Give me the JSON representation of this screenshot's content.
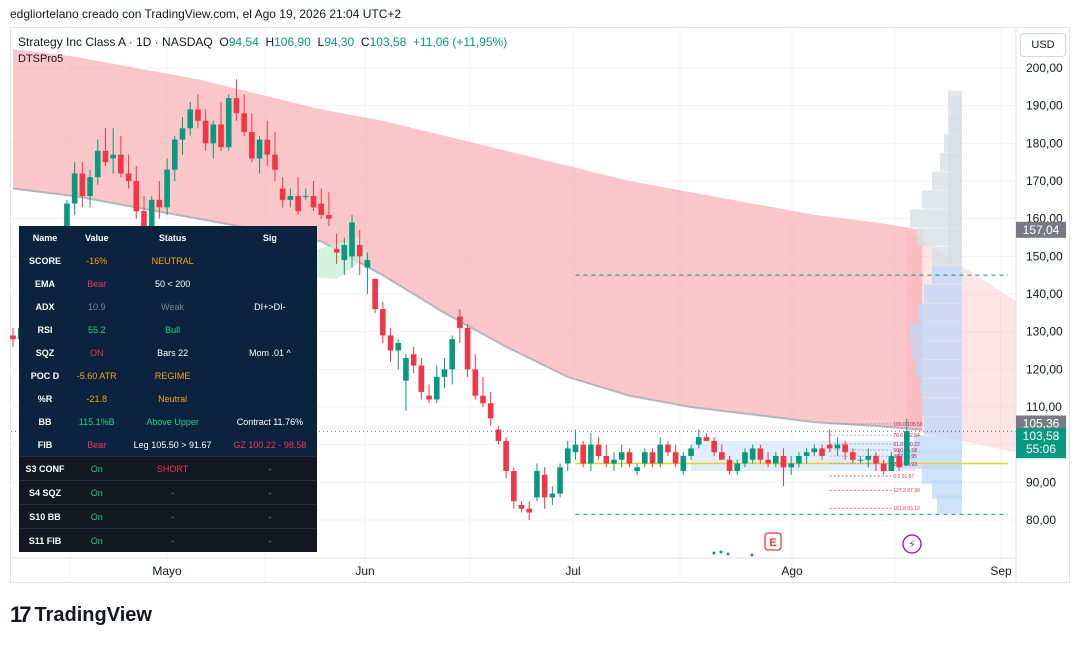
{
  "header": {
    "caption": "edgliortelano creado con TradingView.com, el Ago 19, 2026 21:04 UTC+2"
  },
  "legend": {
    "symbol": "Strategy Inc Class A · 1D · NASDAQ",
    "o_label": "O",
    "o_value": "94,54",
    "h_label": "H",
    "h_value": "106,90",
    "l_label": "L",
    "l_value": "94,30",
    "c_label": "C",
    "c_value": "103,58",
    "change": "+11,06 (+11,95%)",
    "indicator": "DTSPro5"
  },
  "currency_button": "USD",
  "price_badges": {
    "level_157": "157,04",
    "level_105": "105,36",
    "last_price": "103,58",
    "countdown": "55:06"
  },
  "footer": {
    "brand": "TradingView"
  },
  "colors": {
    "up": "#089981",
    "down": "#f23645",
    "cloud_red": "#f7a7ab",
    "cloud_green": "#c8efd8",
    "profile_blue": "#bcd7f5",
    "profile_grey": "#d6dde3",
    "poc_line": "#e8d224"
  },
  "panel": {
    "headers": [
      "Name",
      "Value",
      "Status",
      "Sig"
    ],
    "rows": [
      {
        "name": "SCORE",
        "value": "-16%",
        "value_color": "orange",
        "status": "NEUTRAL",
        "status_color": "orange",
        "sig": "",
        "sig_color": "white"
      },
      {
        "name": "EMA",
        "value": "Bear",
        "value_color": "red",
        "status": "50 < 200",
        "status_color": "white",
        "sig": "",
        "sig_color": "white"
      },
      {
        "name": "ADX",
        "value": "10.9",
        "value_color": "grey",
        "status": "Weak",
        "status_color": "grey",
        "sig": "DI+>DI-",
        "sig_color": "white"
      },
      {
        "name": "RSI",
        "value": "55.2",
        "value_color": "green",
        "status": "Bull",
        "status_color": "green",
        "sig": "",
        "sig_color": "white"
      },
      {
        "name": "SQZ",
        "value": "ON",
        "value_color": "red",
        "status": "Bars 22",
        "status_color": "white",
        "sig": "Mom .01 ^",
        "sig_color": "white"
      },
      {
        "name": "POC D",
        "value": "-5.60 ATR",
        "value_color": "orange",
        "status": "REGIME",
        "status_color": "orange",
        "sig": "",
        "sig_color": "white"
      },
      {
        "name": "%R",
        "value": "-21.8",
        "value_color": "orange",
        "status": "Neutral",
        "status_color": "orange",
        "sig": "",
        "sig_color": "white"
      },
      {
        "name": "BB",
        "value": "115.1%B",
        "value_color": "green",
        "status": "Above Upper",
        "status_color": "green",
        "sig": "Contract 11.76%",
        "sig_color": "white"
      },
      {
        "name": "FIB",
        "value": "Bear",
        "value_color": "red",
        "status": "Leg 105.50 > 91.67",
        "status_color": "white",
        "sig": "GZ 100.22 - 98.58",
        "sig_color": "red"
      }
    ],
    "signals": [
      {
        "name": "S3 CONF",
        "name_color": "white",
        "value": "On",
        "status": "SHORT",
        "status_color": "red",
        "sig": "-"
      },
      {
        "name": "S4 SQZ",
        "name_color": "yellow",
        "value": "On",
        "status": "-",
        "status_color": "grey",
        "sig": "-"
      },
      {
        "name": "S10 BB",
        "name_color": "cyan",
        "value": "On",
        "status": "-",
        "status_color": "grey",
        "sig": "-"
      },
      {
        "name": "S11 FIB",
        "name_color": "lime",
        "value": "On",
        "status": "-",
        "status_color": "grey",
        "sig": "-"
      }
    ]
  },
  "chart_data": {
    "type": "candlestick",
    "title": "Strategy Inc Class A · 1D · NASDAQ",
    "y_axis": {
      "ticks": [
        200,
        190,
        180,
        170,
        160,
        150,
        140,
        130,
        120,
        110,
        100,
        90,
        80
      ],
      "tick_labels": [
        "200,00",
        "190,00",
        "180,00",
        "170,00",
        "160,00",
        "150,00",
        "140,00",
        "130,00",
        "120,00",
        "110,00",
        "",
        "90,00",
        "80,00"
      ],
      "ylim": [
        76,
        205
      ]
    },
    "x_axis": {
      "labels": [
        "Mayo",
        "Jun",
        "Jul",
        "Ago",
        "Sep"
      ]
    },
    "grid": true,
    "candles": [
      {
        "o": 129,
        "h": 131,
        "l": 126,
        "c": 128
      },
      {
        "o": 128,
        "h": 132,
        "l": 125,
        "c": 131
      },
      {
        "o": 131,
        "h": 134,
        "l": 127,
        "c": 128
      },
      {
        "o": 128,
        "h": 134,
        "l": 126,
        "c": 133
      },
      {
        "o": 137,
        "h": 145,
        "l": 135,
        "c": 143
      },
      {
        "o": 143,
        "h": 150,
        "l": 138,
        "c": 146
      },
      {
        "o": 146,
        "h": 155,
        "l": 144,
        "c": 153
      },
      {
        "o": 153,
        "h": 165,
        "l": 150,
        "c": 164
      },
      {
        "o": 164,
        "h": 175,
        "l": 161,
        "c": 172
      },
      {
        "o": 172,
        "h": 175,
        "l": 163,
        "c": 166
      },
      {
        "o": 166,
        "h": 173,
        "l": 163,
        "c": 171
      },
      {
        "o": 171,
        "h": 181,
        "l": 169,
        "c": 178
      },
      {
        "o": 178,
        "h": 184,
        "l": 174,
        "c": 175
      },
      {
        "o": 176,
        "h": 184,
        "l": 172,
        "c": 177
      },
      {
        "o": 177,
        "h": 182,
        "l": 171,
        "c": 172
      },
      {
        "o": 172,
        "h": 177,
        "l": 168,
        "c": 170
      },
      {
        "o": 170,
        "h": 174,
        "l": 160,
        "c": 162
      },
      {
        "o": 162,
        "h": 166,
        "l": 154,
        "c": 158
      },
      {
        "o": 158,
        "h": 166,
        "l": 156,
        "c": 165
      },
      {
        "o": 165,
        "h": 170,
        "l": 160,
        "c": 163
      },
      {
        "o": 163,
        "h": 176,
        "l": 161,
        "c": 173
      },
      {
        "o": 173,
        "h": 182,
        "l": 170,
        "c": 181
      },
      {
        "o": 181,
        "h": 187,
        "l": 177,
        "c": 184
      },
      {
        "o": 184,
        "h": 191,
        "l": 182,
        "c": 189
      },
      {
        "o": 189,
        "h": 193,
        "l": 184,
        "c": 186
      },
      {
        "o": 186,
        "h": 189,
        "l": 178,
        "c": 180
      },
      {
        "o": 180,
        "h": 186,
        "l": 176,
        "c": 185
      },
      {
        "o": 185,
        "h": 191,
        "l": 178,
        "c": 179
      },
      {
        "o": 179,
        "h": 193,
        "l": 178,
        "c": 192
      },
      {
        "o": 192,
        "h": 197,
        "l": 186,
        "c": 188
      },
      {
        "o": 188,
        "h": 193,
        "l": 182,
        "c": 183
      },
      {
        "o": 183,
        "h": 188,
        "l": 175,
        "c": 176
      },
      {
        "o": 176,
        "h": 182,
        "l": 172,
        "c": 181
      },
      {
        "o": 181,
        "h": 186,
        "l": 174,
        "c": 177
      },
      {
        "o": 177,
        "h": 183,
        "l": 170,
        "c": 173
      },
      {
        "o": 168,
        "h": 171,
        "l": 163,
        "c": 165
      },
      {
        "o": 165,
        "h": 168,
        "l": 163,
        "c": 166
      },
      {
        "o": 166,
        "h": 171,
        "l": 161,
        "c": 162
      },
      {
        "o": 166,
        "h": 168,
        "l": 165,
        "c": 166
      },
      {
        "o": 166,
        "h": 170,
        "l": 162,
        "c": 163
      },
      {
        "o": 164,
        "h": 168,
        "l": 160,
        "c": 161
      },
      {
        "o": 161,
        "h": 167,
        "l": 158,
        "c": 160
      },
      {
        "o": 152,
        "h": 156,
        "l": 148,
        "c": 151
      },
      {
        "o": 149,
        "h": 155,
        "l": 145,
        "c": 153
      },
      {
        "o": 150,
        "h": 161,
        "l": 147,
        "c": 159
      },
      {
        "o": 153,
        "h": 157,
        "l": 145,
        "c": 150
      },
      {
        "o": 147,
        "h": 151,
        "l": 140,
        "c": 149
      },
      {
        "o": 144,
        "h": 144,
        "l": 135,
        "c": 136
      },
      {
        "o": 136,
        "h": 138,
        "l": 127,
        "c": 129
      },
      {
        "o": 129,
        "h": 131,
        "l": 122,
        "c": 125
      },
      {
        "o": 125,
        "h": 128,
        "l": 120,
        "c": 127
      },
      {
        "o": 117,
        "h": 124,
        "l": 109,
        "c": 123
      },
      {
        "o": 124,
        "h": 126,
        "l": 119,
        "c": 121
      },
      {
        "o": 121,
        "h": 123,
        "l": 112,
        "c": 114
      },
      {
        "o": 113,
        "h": 116,
        "l": 111,
        "c": 112
      },
      {
        "o": 112,
        "h": 121,
        "l": 111,
        "c": 118
      },
      {
        "o": 118,
        "h": 123,
        "l": 115,
        "c": 120
      },
      {
        "o": 120,
        "h": 129,
        "l": 116,
        "c": 128
      },
      {
        "o": 134,
        "h": 136,
        "l": 127,
        "c": 131
      },
      {
        "o": 131,
        "h": 132,
        "l": 118,
        "c": 120
      },
      {
        "o": 120,
        "h": 124,
        "l": 112,
        "c": 113
      },
      {
        "o": 113,
        "h": 118,
        "l": 110,
        "c": 111
      },
      {
        "o": 111,
        "h": 114,
        "l": 105,
        "c": 107
      },
      {
        "o": 104,
        "h": 105,
        "l": 100,
        "c": 101
      },
      {
        "o": 101,
        "h": 102,
        "l": 91,
        "c": 93
      },
      {
        "o": 93,
        "h": 94,
        "l": 83,
        "c": 85
      },
      {
        "o": 84,
        "h": 85,
        "l": 82,
        "c": 83
      },
      {
        "o": 83,
        "h": 85,
        "l": 80,
        "c": 82
      },
      {
        "o": 86,
        "h": 95,
        "l": 85,
        "c": 93
      },
      {
        "o": 92,
        "h": 94,
        "l": 83,
        "c": 86
      },
      {
        "o": 86,
        "h": 89,
        "l": 84,
        "c": 87
      },
      {
        "o": 87,
        "h": 95,
        "l": 86,
        "c": 94
      },
      {
        "o": 95,
        "h": 101,
        "l": 93,
        "c": 99
      },
      {
        "o": 98,
        "h": 104,
        "l": 96,
        "c": 100
      },
      {
        "o": 100,
        "h": 101,
        "l": 94,
        "c": 95
      },
      {
        "o": 95,
        "h": 103,
        "l": 93,
        "c": 100
      },
      {
        "o": 100,
        "h": 102,
        "l": 96,
        "c": 97
      },
      {
        "o": 97,
        "h": 100,
        "l": 94,
        "c": 95
      },
      {
        "o": 95,
        "h": 98,
        "l": 93,
        "c": 96
      },
      {
        "o": 96,
        "h": 100,
        "l": 94,
        "c": 98
      },
      {
        "o": 98,
        "h": 99,
        "l": 94,
        "c": 95
      },
      {
        "o": 93,
        "h": 95,
        "l": 92,
        "c": 94
      },
      {
        "o": 95,
        "h": 99,
        "l": 94,
        "c": 98
      },
      {
        "o": 98,
        "h": 99,
        "l": 94,
        "c": 95
      },
      {
        "o": 95,
        "h": 102,
        "l": 94,
        "c": 100
      },
      {
        "o": 100,
        "h": 101,
        "l": 97,
        "c": 98
      },
      {
        "o": 98,
        "h": 100,
        "l": 94,
        "c": 95
      },
      {
        "o": 93,
        "h": 98,
        "l": 92,
        "c": 97
      },
      {
        "o": 97,
        "h": 100,
        "l": 96,
        "c": 99
      },
      {
        "o": 100,
        "h": 104,
        "l": 99,
        "c": 102
      },
      {
        "o": 102,
        "h": 103,
        "l": 101,
        "c": 101
      },
      {
        "o": 101,
        "h": 102,
        "l": 97,
        "c": 98
      },
      {
        "o": 98,
        "h": 100,
        "l": 96,
        "c": 96
      },
      {
        "o": 96,
        "h": 97,
        "l": 92,
        "c": 93
      },
      {
        "o": 93,
        "h": 96,
        "l": 92,
        "c": 95
      },
      {
        "o": 95,
        "h": 99,
        "l": 94,
        "c": 98
      },
      {
        "o": 96,
        "h": 100,
        "l": 95,
        "c": 99
      },
      {
        "o": 99,
        "h": 100,
        "l": 95,
        "c": 96
      },
      {
        "o": 96,
        "h": 98,
        "l": 94,
        "c": 95
      },
      {
        "o": 95,
        "h": 98,
        "l": 94,
        "c": 97
      },
      {
        "o": 97,
        "h": 99,
        "l": 89,
        "c": 94
      },
      {
        "o": 94,
        "h": 97,
        "l": 92,
        "c": 95
      },
      {
        "o": 95,
        "h": 98,
        "l": 94,
        "c": 97
      },
      {
        "o": 97,
        "h": 99,
        "l": 95,
        "c": 98
      },
      {
        "o": 98,
        "h": 100,
        "l": 97,
        "c": 99
      },
      {
        "o": 99,
        "h": 100,
        "l": 96,
        "c": 97
      },
      {
        "o": 100,
        "h": 104,
        "l": 98,
        "c": 99
      },
      {
        "o": 99,
        "h": 102,
        "l": 97,
        "c": 100
      },
      {
        "o": 100,
        "h": 101,
        "l": 96,
        "c": 98
      },
      {
        "o": 98,
        "h": 99,
        "l": 95,
        "c": 96
      },
      {
        "o": 96,
        "h": 97,
        "l": 95,
        "c": 96
      },
      {
        "o": 96,
        "h": 99,
        "l": 94,
        "c": 97
      },
      {
        "o": 97,
        "h": 98,
        "l": 93,
        "c": 95
      },
      {
        "o": 95,
        "h": 96,
        "l": 92,
        "c": 93
      },
      {
        "o": 93,
        "h": 98,
        "l": 93,
        "c": 97
      },
      {
        "o": 97,
        "h": 99,
        "l": 93,
        "c": 94
      },
      {
        "o": 94.54,
        "h": 106.9,
        "l": 94.3,
        "c": 103.58
      }
    ],
    "cloud_upper": [
      [
        0,
        205
      ],
      [
        8,
        203
      ],
      [
        16,
        200
      ],
      [
        24,
        197
      ],
      [
        32,
        193
      ],
      [
        40,
        189
      ],
      [
        48,
        186
      ],
      [
        56,
        182
      ],
      [
        64,
        178
      ],
      [
        72,
        174
      ],
      [
        80,
        170
      ],
      [
        88,
        167
      ],
      [
        96,
        164
      ],
      [
        104,
        161
      ],
      [
        112,
        159
      ],
      [
        118,
        157
      ]
    ],
    "cloud_lower": [
      [
        0,
        168
      ],
      [
        8,
        166
      ],
      [
        16,
        163
      ],
      [
        24,
        160
      ],
      [
        32,
        157
      ],
      [
        40,
        154
      ],
      [
        48,
        145
      ],
      [
        56,
        135
      ],
      [
        64,
        126
      ],
      [
        72,
        118
      ],
      [
        80,
        113
      ],
      [
        88,
        110
      ],
      [
        96,
        108
      ],
      [
        104,
        106
      ],
      [
        112,
        105
      ],
      [
        118,
        104
      ]
    ],
    "horizontal_levels": [
      {
        "value": 145,
        "style": "dashed",
        "color": "#089981",
        "from": 73
      },
      {
        "value": 95,
        "style": "solid",
        "color": "#e8d224",
        "from": 73
      },
      {
        "value": 81.5,
        "style": "dashed",
        "color": "#089981",
        "from": 73
      }
    ],
    "fib_levels": [
      {
        "label": "100.0 105.50",
        "value": 105.5
      },
      {
        "label": "78.6 102.54",
        "value": 102.54
      },
      {
        "label": "61.8 100.22",
        "value": 100.22
      },
      {
        "label": "50.0 98.58",
        "value": 98.58
      },
      {
        "label": "38.2 96.95",
        "value": 96.95
      },
      {
        "label": "23.6 94.93",
        "value": 94.93
      },
      {
        "label": "0.0 91.67",
        "value": 91.67
      },
      {
        "label": "127.2 87.90",
        "value": 87.9
      },
      {
        "label": "161.8 83.12",
        "value": 83.12
      }
    ]
  }
}
